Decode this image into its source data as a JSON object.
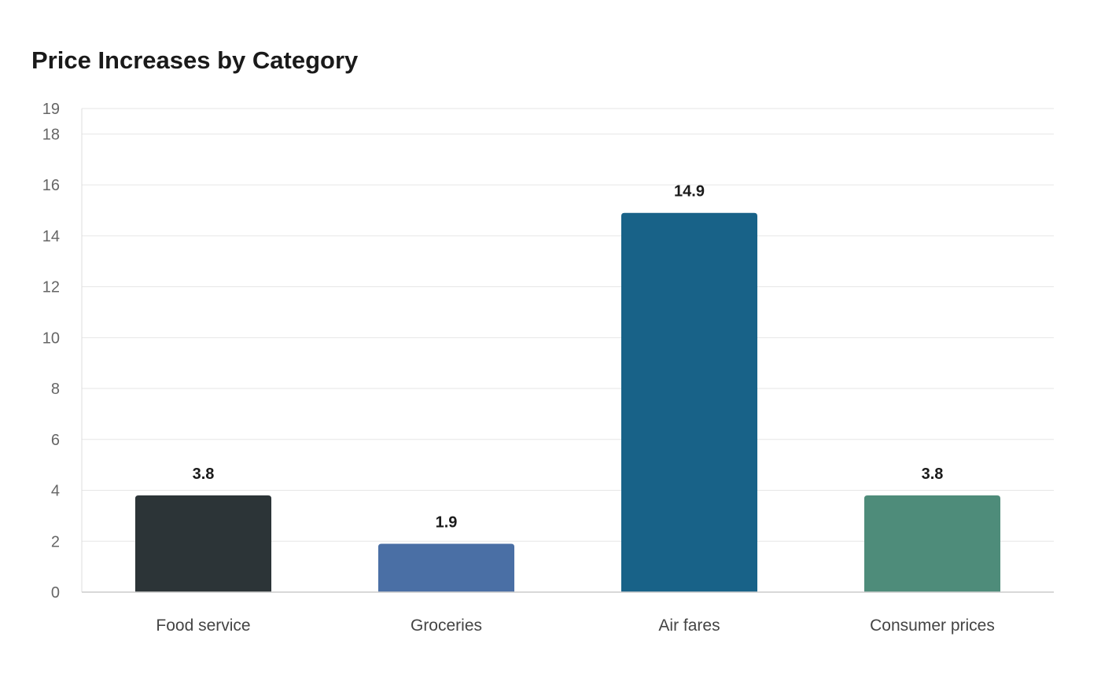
{
  "chart_data": {
    "type": "bar",
    "title": "Price Increases by Category",
    "xlabel": "",
    "ylabel": "",
    "categories": [
      "Food service",
      "Groceries",
      "Air fares",
      "Consumer prices"
    ],
    "values": [
      3.8,
      1.9,
      14.9,
      3.8
    ],
    "data_labels": [
      "3.8",
      "1.9",
      "14.9",
      "3.8"
    ],
    "colors": [
      "#2c3437",
      "#4a6fa5",
      "#186288",
      "#4e8c7a"
    ],
    "ylim": [
      0,
      19
    ],
    "yticks": [
      0,
      2,
      4,
      6,
      8,
      10,
      12,
      14,
      16,
      18,
      19
    ],
    "grid": true,
    "legend": "none"
  }
}
